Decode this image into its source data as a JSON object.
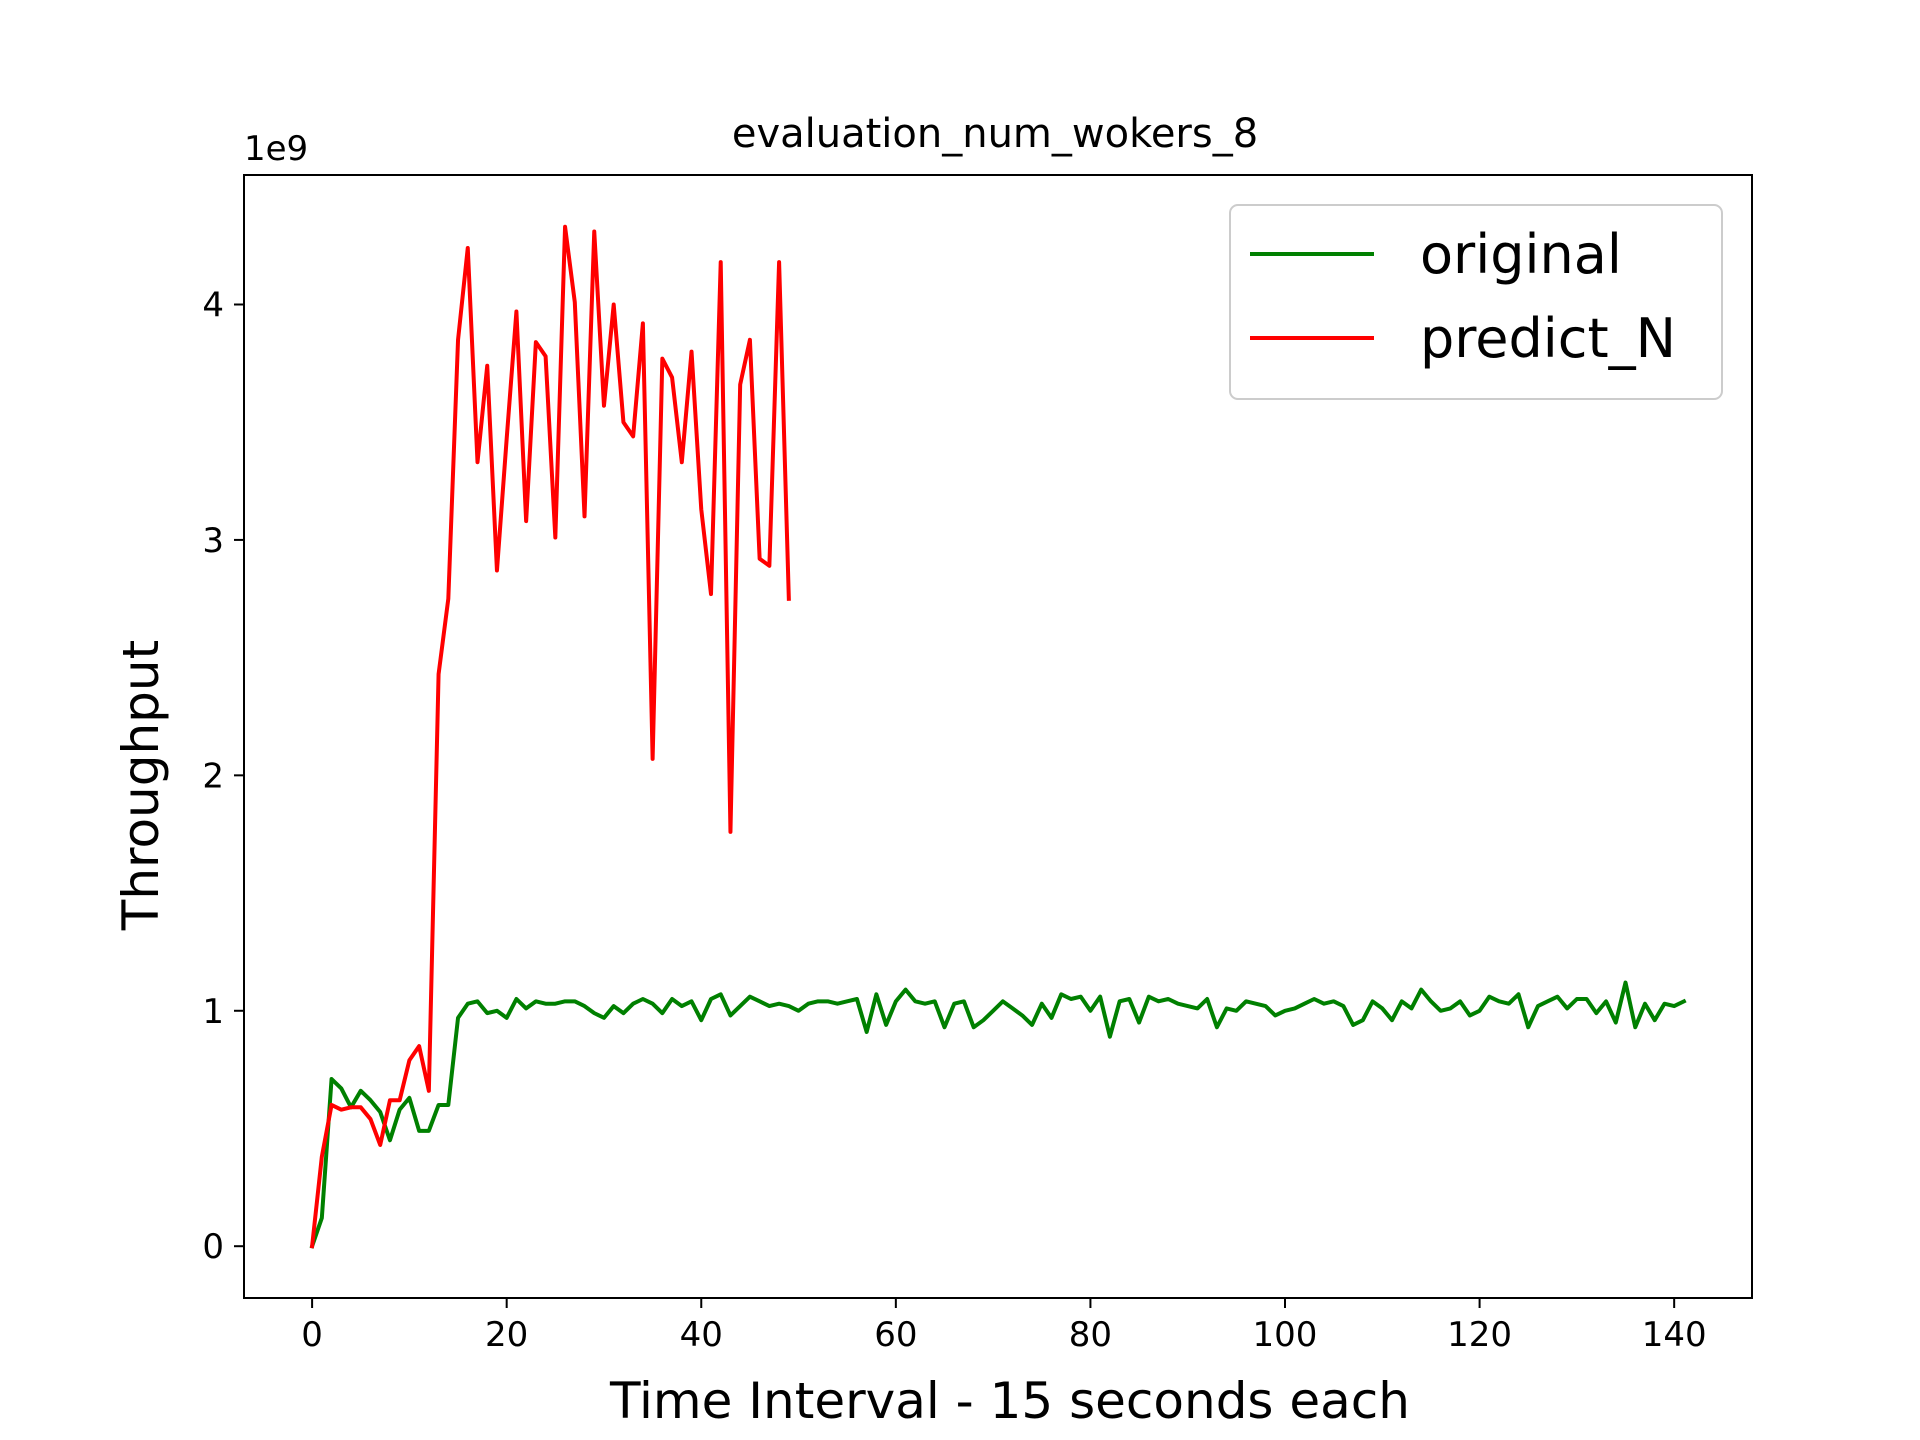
{
  "chart_data": {
    "type": "line",
    "title": "evaluation_num_wokers_8",
    "xlabel": "Time Interval - 15 seconds each",
    "ylabel": "Throughput",
    "y_offset_label": "1e9",
    "xlim": [
      -7,
      148
    ],
    "ylim": [
      -0.22,
      4.55
    ],
    "x_ticks": [
      0,
      20,
      40,
      60,
      80,
      100,
      120,
      140
    ],
    "y_ticks": [
      0,
      1,
      2,
      3,
      4
    ],
    "legend_position": "upper right",
    "grid": false,
    "series": [
      {
        "name": "original",
        "color": "#008000",
        "values": [
          0.0,
          0.12,
          0.71,
          0.67,
          0.59,
          0.66,
          0.62,
          0.57,
          0.45,
          0.58,
          0.63,
          0.49,
          0.49,
          0.6,
          0.6,
          0.97,
          1.03,
          1.04,
          0.99,
          1.0,
          0.97,
          1.05,
          1.01,
          1.04,
          1.03,
          1.03,
          1.04,
          1.04,
          1.02,
          0.99,
          0.97,
          1.02,
          0.99,
          1.03,
          1.05,
          1.03,
          0.99,
          1.05,
          1.02,
          1.04,
          0.96,
          1.05,
          1.07,
          0.98,
          1.02,
          1.06,
          1.04,
          1.02,
          1.03,
          1.02,
          1.0,
          1.03,
          1.04,
          1.04,
          1.03,
          1.04,
          1.05,
          0.91,
          1.07,
          0.94,
          1.04,
          1.09,
          1.04,
          1.03,
          1.04,
          0.93,
          1.03,
          1.04,
          0.93,
          0.96,
          1.0,
          1.04,
          1.01,
          0.98,
          0.94,
          1.03,
          0.97,
          1.07,
          1.05,
          1.06,
          1.0,
          1.06,
          0.89,
          1.04,
          1.05,
          0.95,
          1.06,
          1.04,
          1.05,
          1.03,
          1.02,
          1.01,
          1.05,
          0.93,
          1.01,
          1.0,
          1.04,
          1.03,
          1.02,
          0.98,
          1.0,
          1.01,
          1.03,
          1.05,
          1.03,
          1.04,
          1.02,
          0.94,
          0.96,
          1.04,
          1.01,
          0.96,
          1.04,
          1.01,
          1.09,
          1.04,
          1.0,
          1.01,
          1.04,
          0.98,
          1.0,
          1.06,
          1.04,
          1.03,
          1.07,
          0.93,
          1.02,
          1.04,
          1.06,
          1.01,
          1.05,
          1.05,
          0.99,
          1.04,
          0.95,
          1.12,
          0.93,
          1.03,
          0.96,
          1.03,
          1.02,
          1.04
        ]
      },
      {
        "name": "predict_N",
        "color": "#ff0000",
        "values": [
          0.0,
          0.38,
          0.6,
          0.58,
          0.59,
          0.59,
          0.54,
          0.43,
          0.62,
          0.62,
          0.79,
          0.85,
          0.66,
          2.43,
          2.75,
          3.85,
          4.24,
          3.33,
          3.74,
          2.87,
          3.43,
          3.97,
          3.08,
          3.84,
          3.78,
          3.01,
          4.33,
          4.01,
          3.1,
          4.31,
          3.57,
          4.0,
          3.5,
          3.44,
          3.92,
          2.07,
          3.77,
          3.69,
          3.33,
          3.8,
          3.13,
          2.77,
          4.18,
          1.76,
          3.66,
          3.85,
          2.92,
          2.89,
          4.18,
          2.75
        ]
      }
    ]
  }
}
